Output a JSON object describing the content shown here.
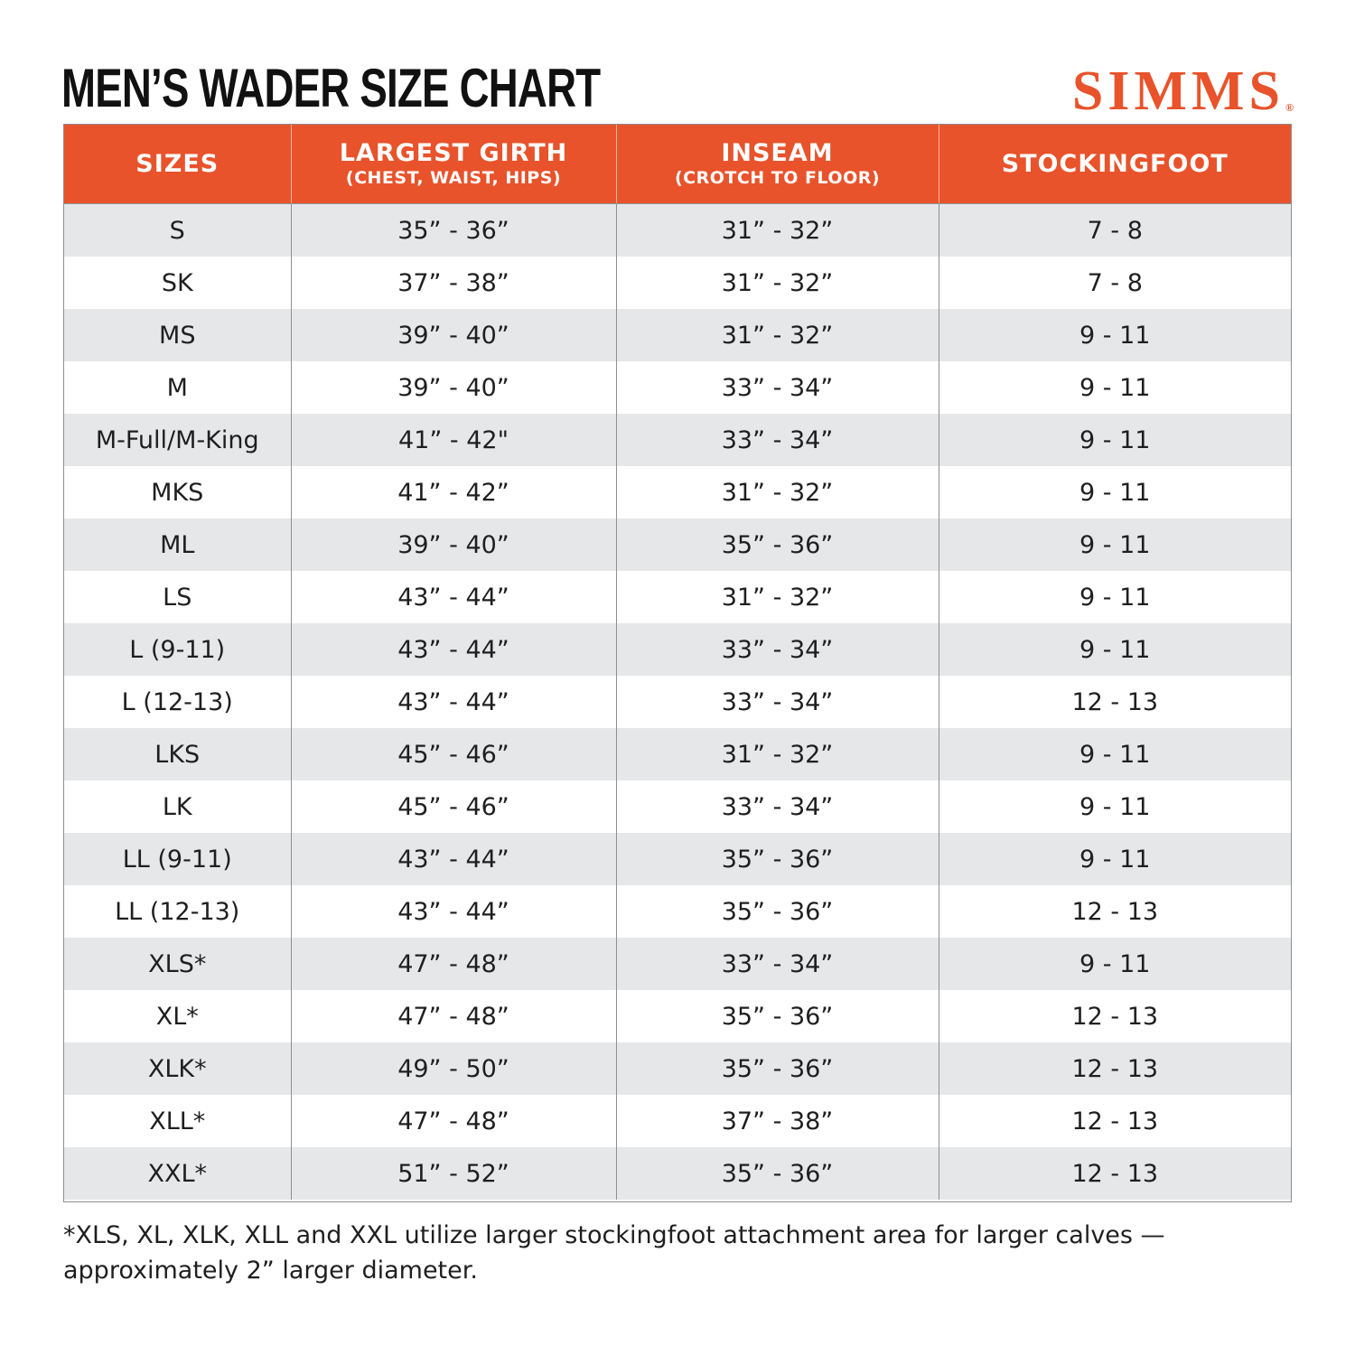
{
  "title": "MEN’S WADER SIZE CHART",
  "brand": {
    "name": "SIMMS",
    "mark": "®",
    "color": "#e8532b"
  },
  "colors": {
    "header_bg": "#e8532b",
    "stripe": "#e6e7e9"
  },
  "table": {
    "headers": [
      {
        "main": "SIZES",
        "sub": ""
      },
      {
        "main": "LARGEST GIRTH",
        "sub": "(CHEST, WAIST, HIPS)"
      },
      {
        "main": "INSEAM",
        "sub": "(CROTCH TO FLOOR)"
      },
      {
        "main": "STOCKINGFOOT",
        "sub": ""
      }
    ],
    "rows": [
      [
        "S",
        "35” - 36”",
        "31” - 32”",
        "7 - 8"
      ],
      [
        "SK",
        "37” - 38”",
        "31” - 32”",
        "7 - 8"
      ],
      [
        "MS",
        "39” - 40”",
        "31” - 32”",
        "9 - 11"
      ],
      [
        "M",
        "39” - 40”",
        "33” - 34”",
        "9 - 11"
      ],
      [
        "M-Full/M-King",
        "41” - 42\"",
        "33” - 34”",
        "9 - 11"
      ],
      [
        "MKS",
        "41” - 42”",
        "31” - 32”",
        "9 - 11"
      ],
      [
        "ML",
        "39” - 40”",
        "35” - 36”",
        "9 - 11"
      ],
      [
        "LS",
        "43” - 44”",
        "31” - 32”",
        "9 - 11"
      ],
      [
        "L (9-11)",
        "43” - 44”",
        "33” - 34”",
        "9 - 11"
      ],
      [
        "L (12-13)",
        "43” - 44”",
        "33” - 34”",
        "12 - 13"
      ],
      [
        "LKS",
        "45” - 46”",
        "31” - 32”",
        "9 - 11"
      ],
      [
        "LK",
        "45” - 46”",
        "33” - 34”",
        "9 - 11"
      ],
      [
        "LL (9-11)",
        "43” - 44”",
        "35” - 36”",
        "9 - 11"
      ],
      [
        "LL (12-13)",
        "43” - 44”",
        "35” - 36”",
        "12 - 13"
      ],
      [
        "XLS*",
        "47” - 48”",
        "33” - 34”",
        "9 - 11"
      ],
      [
        "XL*",
        "47” - 48”",
        "35” - 36”",
        "12 - 13"
      ],
      [
        "XLK*",
        "49” - 50”",
        "35” - 36”",
        "12 - 13"
      ],
      [
        "XLL*",
        "47” - 48”",
        "37” - 38”",
        "12 - 13"
      ],
      [
        "XXL*",
        "51” - 52”",
        "35” - 36”",
        "12 - 13"
      ]
    ]
  },
  "footnote": "*XLS, XL, XLK, XLL and XXL utilize larger stockingfoot attachment area for larger calves — approximately 2” larger diameter."
}
